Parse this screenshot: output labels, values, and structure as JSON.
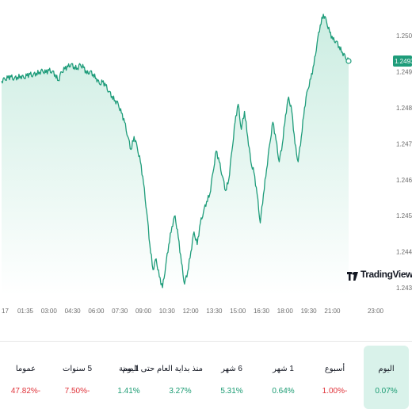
{
  "colors": {
    "line": "#1e9c7a",
    "fill_top": "#c9ece0",
    "fill_bottom": "#ffffff",
    "positive": "#1a9b72",
    "negative": "#e0333a",
    "active_tab_bg": "#d9f2ea"
  },
  "branding": {
    "logo_text": "TradingView",
    "logo_icon": "tradingview-logo-icon"
  },
  "price_axis": {
    "current_price_label": "1.24930"
  },
  "chart_data": {
    "type": "line",
    "title": "",
    "xlabel": "",
    "ylabel": "",
    "x_ticks": [
      "17",
      "01:35",
      "03:00",
      "04:30",
      "06:00",
      "07:30",
      "09:00",
      "10:30",
      "12:00",
      "13:30",
      "15:00",
      "16:30",
      "18:00",
      "19:30",
      "21:00",
      "23:00"
    ],
    "y_ticks": [
      "1.25000",
      "1.24900",
      "1.24800",
      "1.24700",
      "1.24600",
      "1.24500",
      "1.24400",
      "1.24300"
    ],
    "ylim": [
      1.2428,
      1.2506
    ],
    "grid": false,
    "series": [
      {
        "name": "",
        "x": [
          0,
          1,
          2,
          3,
          4,
          5,
          6,
          7,
          8,
          9,
          10,
          11,
          12,
          13,
          14,
          15,
          16,
          17,
          18,
          19,
          20,
          21,
          22,
          23,
          24,
          25,
          26,
          27,
          28,
          29,
          30,
          31,
          32,
          33,
          34,
          35,
          36,
          37,
          38,
          39,
          40,
          41,
          42,
          43,
          44,
          45,
          46,
          47,
          48,
          49,
          50,
          51,
          52,
          53,
          54,
          55,
          56,
          57,
          58,
          59,
          60,
          61,
          62,
          63,
          64,
          65,
          66,
          67,
          68,
          69,
          70,
          71,
          72,
          73,
          74,
          75,
          76,
          77,
          78,
          79,
          80,
          81,
          82,
          83,
          84,
          85,
          86,
          87,
          88,
          89,
          90,
          91,
          92,
          93,
          94,
          95,
          96,
          97,
          98,
          99,
          100,
          101,
          102,
          103,
          104,
          105,
          106,
          107,
          108,
          109,
          110
        ],
        "y": [
          1.24874,
          1.2488,
          1.24883,
          1.24886,
          1.24881,
          1.24885,
          1.24888,
          1.24884,
          1.24889,
          1.24893,
          1.24891,
          1.24896,
          1.24899,
          1.24903,
          1.24898,
          1.24904,
          1.24901,
          1.24892,
          1.24876,
          1.249,
          1.24908,
          1.24914,
          1.24921,
          1.24913,
          1.2491,
          1.2492,
          1.24912,
          1.24895,
          1.24901,
          1.24893,
          1.24882,
          1.24867,
          1.24872,
          1.24862,
          1.24845,
          1.24832,
          1.2482,
          1.2481,
          1.24785,
          1.2476,
          1.2472,
          1.24684,
          1.2472,
          1.2469,
          1.2465,
          1.2459,
          1.2451,
          1.2442,
          1.2435,
          1.2438,
          1.2433,
          1.243,
          1.2436,
          1.2442,
          1.2447,
          1.245,
          1.2444,
          1.2437,
          1.2431,
          1.24345,
          1.244,
          1.24455,
          1.2442,
          1.2448,
          1.2451,
          1.2454,
          1.2456,
          1.2462,
          1.2468,
          1.2465,
          1.2461,
          1.2457,
          1.246,
          1.2468,
          1.2476,
          1.2481,
          1.2474,
          1.2479,
          1.2472,
          1.2465,
          1.2462,
          1.2456,
          1.2448,
          1.2456,
          1.2463,
          1.247,
          1.2476,
          1.2471,
          1.2465,
          1.247,
          1.2478,
          1.2483,
          1.2479,
          1.247,
          1.2465,
          1.2472,
          1.248,
          1.2485,
          1.2488,
          1.2492,
          1.2498,
          1.2503,
          1.2506,
          1.2504,
          1.2501,
          1.2499,
          1.24985,
          1.2497,
          1.24955,
          1.2494,
          1.2493
        ]
      }
    ]
  },
  "performance_tabs": [
    {
      "label": "اليوم",
      "value": "0.07%",
      "trend": "positive",
      "active": true
    },
    {
      "label": "أسبوع",
      "value": "1.00%-",
      "trend": "negative",
      "active": false
    },
    {
      "label": "1 شهر",
      "value": "0.64%",
      "trend": "positive",
      "active": false
    },
    {
      "label": "6 شهر",
      "value": "5.31%",
      "trend": "positive",
      "active": false
    },
    {
      "label": "منذ بداية العام حتى اليوم",
      "value": "3.27%",
      "trend": "positive",
      "active": false
    },
    {
      "label": "1 سنة",
      "value": "1.41%",
      "trend": "positive",
      "active": false
    },
    {
      "label": "5 سنوات",
      "value": "7.50%-",
      "trend": "negative",
      "active": false
    },
    {
      "label": "عموما",
      "value": "47.82%-",
      "trend": "negative",
      "active": false
    }
  ]
}
